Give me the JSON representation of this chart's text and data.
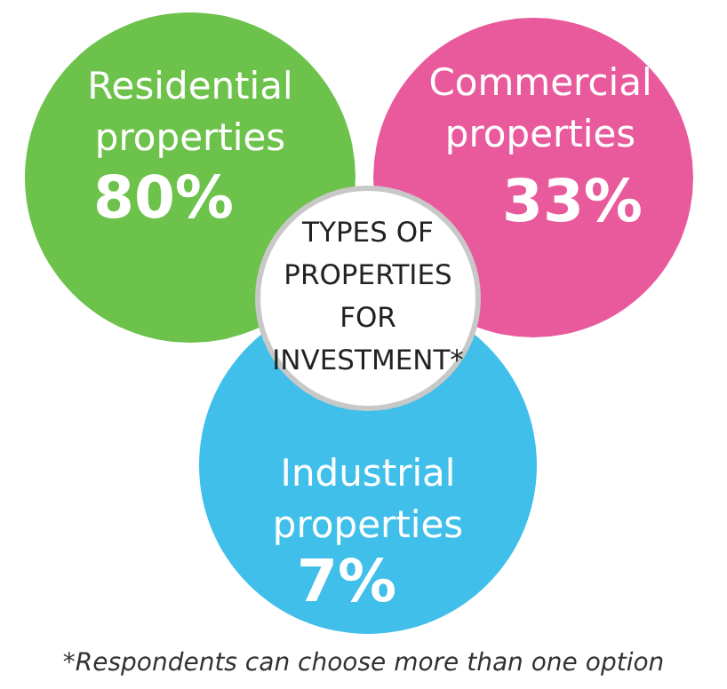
{
  "chart_data": {
    "type": "other",
    "title": "TYPES OF PROPERTIES FOR INVESTMENT*",
    "categories": [
      "Residential properties",
      "Commercial properties",
      "Industrial properties"
    ],
    "values": [
      80,
      33,
      7
    ],
    "value_labels": [
      "80%",
      "33%",
      "7%"
    ],
    "colors": [
      "#6cc24a",
      "#e95a9c",
      "#3fbfea"
    ],
    "annotations": [
      "*Respondents can choose more than one option"
    ]
  }
}
